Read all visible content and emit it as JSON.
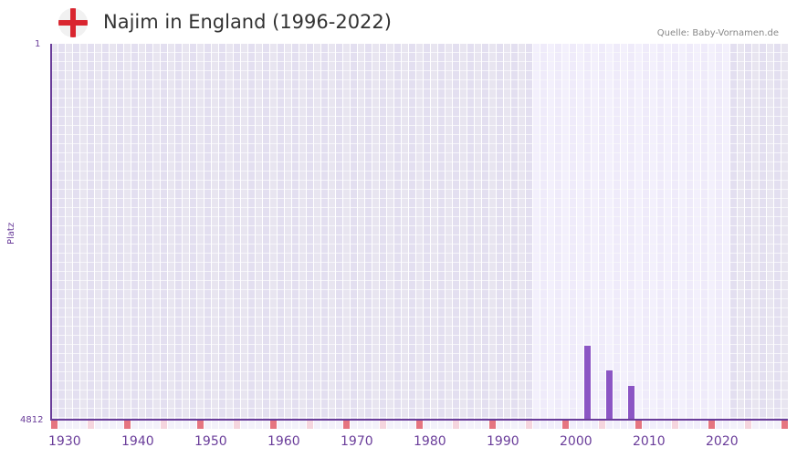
{
  "header": {
    "flag_icon": "england-flag-icon",
    "title": "Najim in England (1996-2022)",
    "source": "Quelle: Baby-Vornamen.de"
  },
  "colors": {
    "axis": "#6a3d9a",
    "bar": "#8b55c4",
    "marker_decade": "#e57580",
    "marker_half": "#f5d5de",
    "cell_dark_a": "#e3dff0",
    "cell_dark_b": "#e8e5f0",
    "cell_light_a": "#efebfa",
    "cell_light_b": "#f3f0fc"
  },
  "chart_data": {
    "type": "bar",
    "title": "Najim in England (1996-2022)",
    "xlabel": "",
    "ylabel": "Platz",
    "y_inverted": true,
    "ylim": [
      4812,
      1
    ],
    "y_ticks": [
      "1",
      "4812"
    ],
    "x_range": [
      1928,
      2028
    ],
    "x_ticks": [
      "1930",
      "1940",
      "1950",
      "1960",
      "1970",
      "1980",
      "1990",
      "2000",
      "2010",
      "2020"
    ],
    "highlight_range": [
      1994,
      2020
    ],
    "categories": [
      "2001",
      "2004",
      "2007"
    ],
    "values": [
      3866,
      4181,
      4380
    ],
    "grid": true,
    "legend": null
  }
}
